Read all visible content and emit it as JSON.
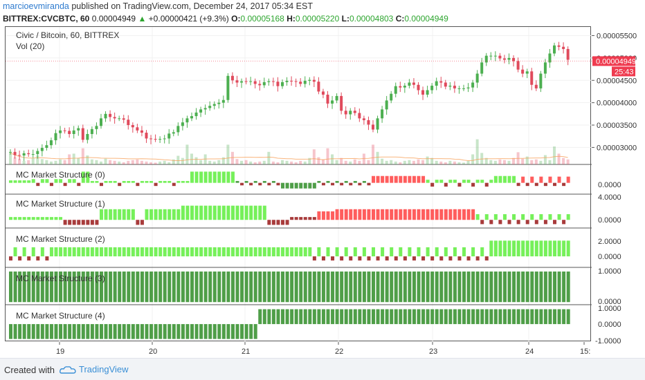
{
  "header": {
    "author": "marcioevmiranda",
    "published_text": "published on TradingView.com, December 24, 2017 05:34 EST",
    "symbol": "BITTREX:CVCBTC, 60",
    "last": "0.00004949",
    "change_arrow": "▲",
    "change": "+0.00000421 (+9.3%)",
    "o_label": "O:",
    "o_value": "0.00005168",
    "h_label": "H:",
    "h_value": "0.00005220",
    "l_label": "L:",
    "l_value": "0.00004803",
    "c_label": "C:",
    "c_value": "0.00004949"
  },
  "panes": {
    "price_title": "Civic / Bitcoin, 60, BITTREX",
    "vol_title": "Vol (20)",
    "ms0": "MC Market Structure (0)",
    "ms1": "MC Market Structure (1)",
    "ms2": "MC Market Structure (2)",
    "ms3": "MC Market Structure (3)",
    "ms4": "MC Market Structure (4)"
  },
  "footer": {
    "created": "Created with",
    "brand": "TradingView"
  },
  "colors": {
    "up": "#4caf50",
    "down": "#e04a5c",
    "light_green": "#76f05a",
    "dark_red": "#a83b3b",
    "light_red": "#ff5d5d",
    "dark_green": "#4f9e48",
    "price_label_bg": "#ef3b4f",
    "grid": "#f0f0f0"
  },
  "chart_data": {
    "type": "candlestick",
    "title": "Civic / Bitcoin, 60, BITTREX",
    "x_ticks": [
      "19",
      "20",
      "21",
      "22",
      "23",
      "24",
      "15:"
    ],
    "y_ticks": [
      "0.00005500",
      "0.00005000",
      "0.00004500",
      "0.00004000",
      "0.00003500",
      "0.00003000"
    ],
    "ylim": [
      2.62e-05,
      5.57e-05
    ],
    "last_price_label": "0.00004949",
    "countdown_label": "25:43",
    "close_series": [
      2.9e-05,
      2.83e-05,
      2.82e-05,
      2.87e-05,
      2.85e-05,
      2.85e-05,
      2.92e-05,
      2.99e-05,
      3.05e-05,
      3.16e-05,
      3.32e-05,
      3.38e-05,
      3.37e-05,
      3.3e-05,
      3.38e-05,
      3.43e-05,
      3.17e-05,
      3.3e-05,
      3.41e-05,
      3.48e-05,
      3.65e-05,
      3.75e-05,
      3.68e-05,
      3.65e-05,
      3.65e-05,
      3.62e-05,
      3.5e-05,
      3.45e-05,
      3.38e-05,
      3.33e-05,
      3.2e-05,
      3.19e-05,
      3.18e-05,
      3.19e-05,
      3.2e-05,
      3.31e-05,
      3.34e-05,
      3.48e-05,
      3.56e-05,
      3.65e-05,
      3.7e-05,
      3.78e-05,
      3.85e-05,
      3.88e-05,
      3.93e-05,
      3.97e-05,
      4e-05,
      4.06e-05,
      4.6e-05,
      4.5e-05,
      4.45e-05,
      4.48e-05,
      4.47e-05,
      4.48e-05,
      4.42e-05,
      4.39e-05,
      4.46e-05,
      4.48e-05,
      4.47e-05,
      4.37e-05,
      4.46e-05,
      4.49e-05,
      4.48e-05,
      4.47e-05,
      4.42e-05,
      4.49e-05,
      4.51e-05,
      4.47e-05,
      4.25e-05,
      4.18e-05,
      3.98e-05,
      4.05e-05,
      4.15e-05,
      3.82e-05,
      3.74e-05,
      3.82e-05,
      3.77e-05,
      3.65e-05,
      3.61e-05,
      3.51e-05,
      3.4e-05,
      3.65e-05,
      3.85e-05,
      4.05e-05,
      4.2e-05,
      4.37e-05,
      4.34e-05,
      4.38e-05,
      4.45e-05,
      4.4e-05,
      4.28e-05,
      4.18e-05,
      4.28e-05,
      4.38e-05,
      4.48e-05,
      4.45e-05,
      4.36e-05,
      4.38e-05,
      4.32e-05,
      4.32e-05,
      4.32e-05,
      4.34e-05,
      4.45e-05,
      4.65e-05,
      4.9e-05,
      5.05e-05,
      5.05e-05,
      5.05e-05,
      4.99e-05,
      4.96e-05,
      5e-05,
      4.93e-05,
      4.74e-05,
      4.65e-05,
      4.7e-05,
      4.4e-05,
      4.32e-05,
      4.65e-05,
      4.9e-05,
      5.1e-05,
      5.28e-05,
      5.25e-05,
      5.2e-05,
      4.96e-05
    ],
    "volume_series": [
      0.32,
      0.2,
      0.15,
      0.1,
      0.12,
      0.18,
      0.25,
      0.15,
      0.12,
      0.08,
      0.1,
      0.14,
      0.12,
      0.28,
      0.3,
      0.18,
      0.45,
      0.25,
      0.14,
      0.12,
      0.08,
      0.16,
      0.12,
      0.1,
      0.08,
      0.06,
      0.1,
      0.12,
      0.14,
      0.1,
      0.08,
      0.06,
      0.05,
      0.08,
      0.1,
      0.06,
      0.14,
      0.24,
      0.18,
      0.55,
      0.3,
      0.2,
      0.12,
      0.28,
      0.1,
      0.08,
      0.12,
      0.2,
      0.55,
      0.35,
      0.15,
      0.1,
      0.12,
      0.08,
      0.06,
      0.08,
      0.1,
      0.35,
      0.08,
      0.06,
      0.12,
      0.1,
      0.08,
      0.06,
      0.1,
      0.08,
      0.18,
      0.42,
      0.2,
      0.14,
      0.45,
      0.28,
      0.12,
      0.18,
      0.1,
      0.08,
      0.14,
      0.1,
      0.3,
      0.12,
      0.55,
      0.35,
      0.16,
      0.1,
      0.12,
      0.08,
      0.06,
      0.1,
      0.12,
      0.1,
      0.14,
      0.12,
      0.22,
      0.18,
      0.1,
      0.08,
      0.06,
      0.1,
      0.08,
      0.06,
      0.05,
      0.1,
      0.28,
      0.7,
      0.32,
      0.18,
      0.12,
      0.1,
      0.14,
      0.12,
      0.1,
      0.18,
      0.34,
      0.16,
      0.22,
      0.12,
      0.14,
      0.1,
      0.26,
      0.12,
      0.5,
      0.3,
      0.18,
      0.14
    ],
    "market_structure": {
      "ms0": {
        "ylabel": "0.0000"
      },
      "ms1": {
        "y_ticks": [
          "4.0000",
          "0.0000"
        ]
      },
      "ms2": {
        "y_ticks": [
          "2.0000",
          "0.0000"
        ]
      },
      "ms3": {
        "y_ticks": [
          "1.0000",
          "0.0000"
        ]
      },
      "ms4": {
        "y_ticks": [
          "1.0000",
          "0.0000",
          "-1.0000"
        ]
      }
    }
  }
}
